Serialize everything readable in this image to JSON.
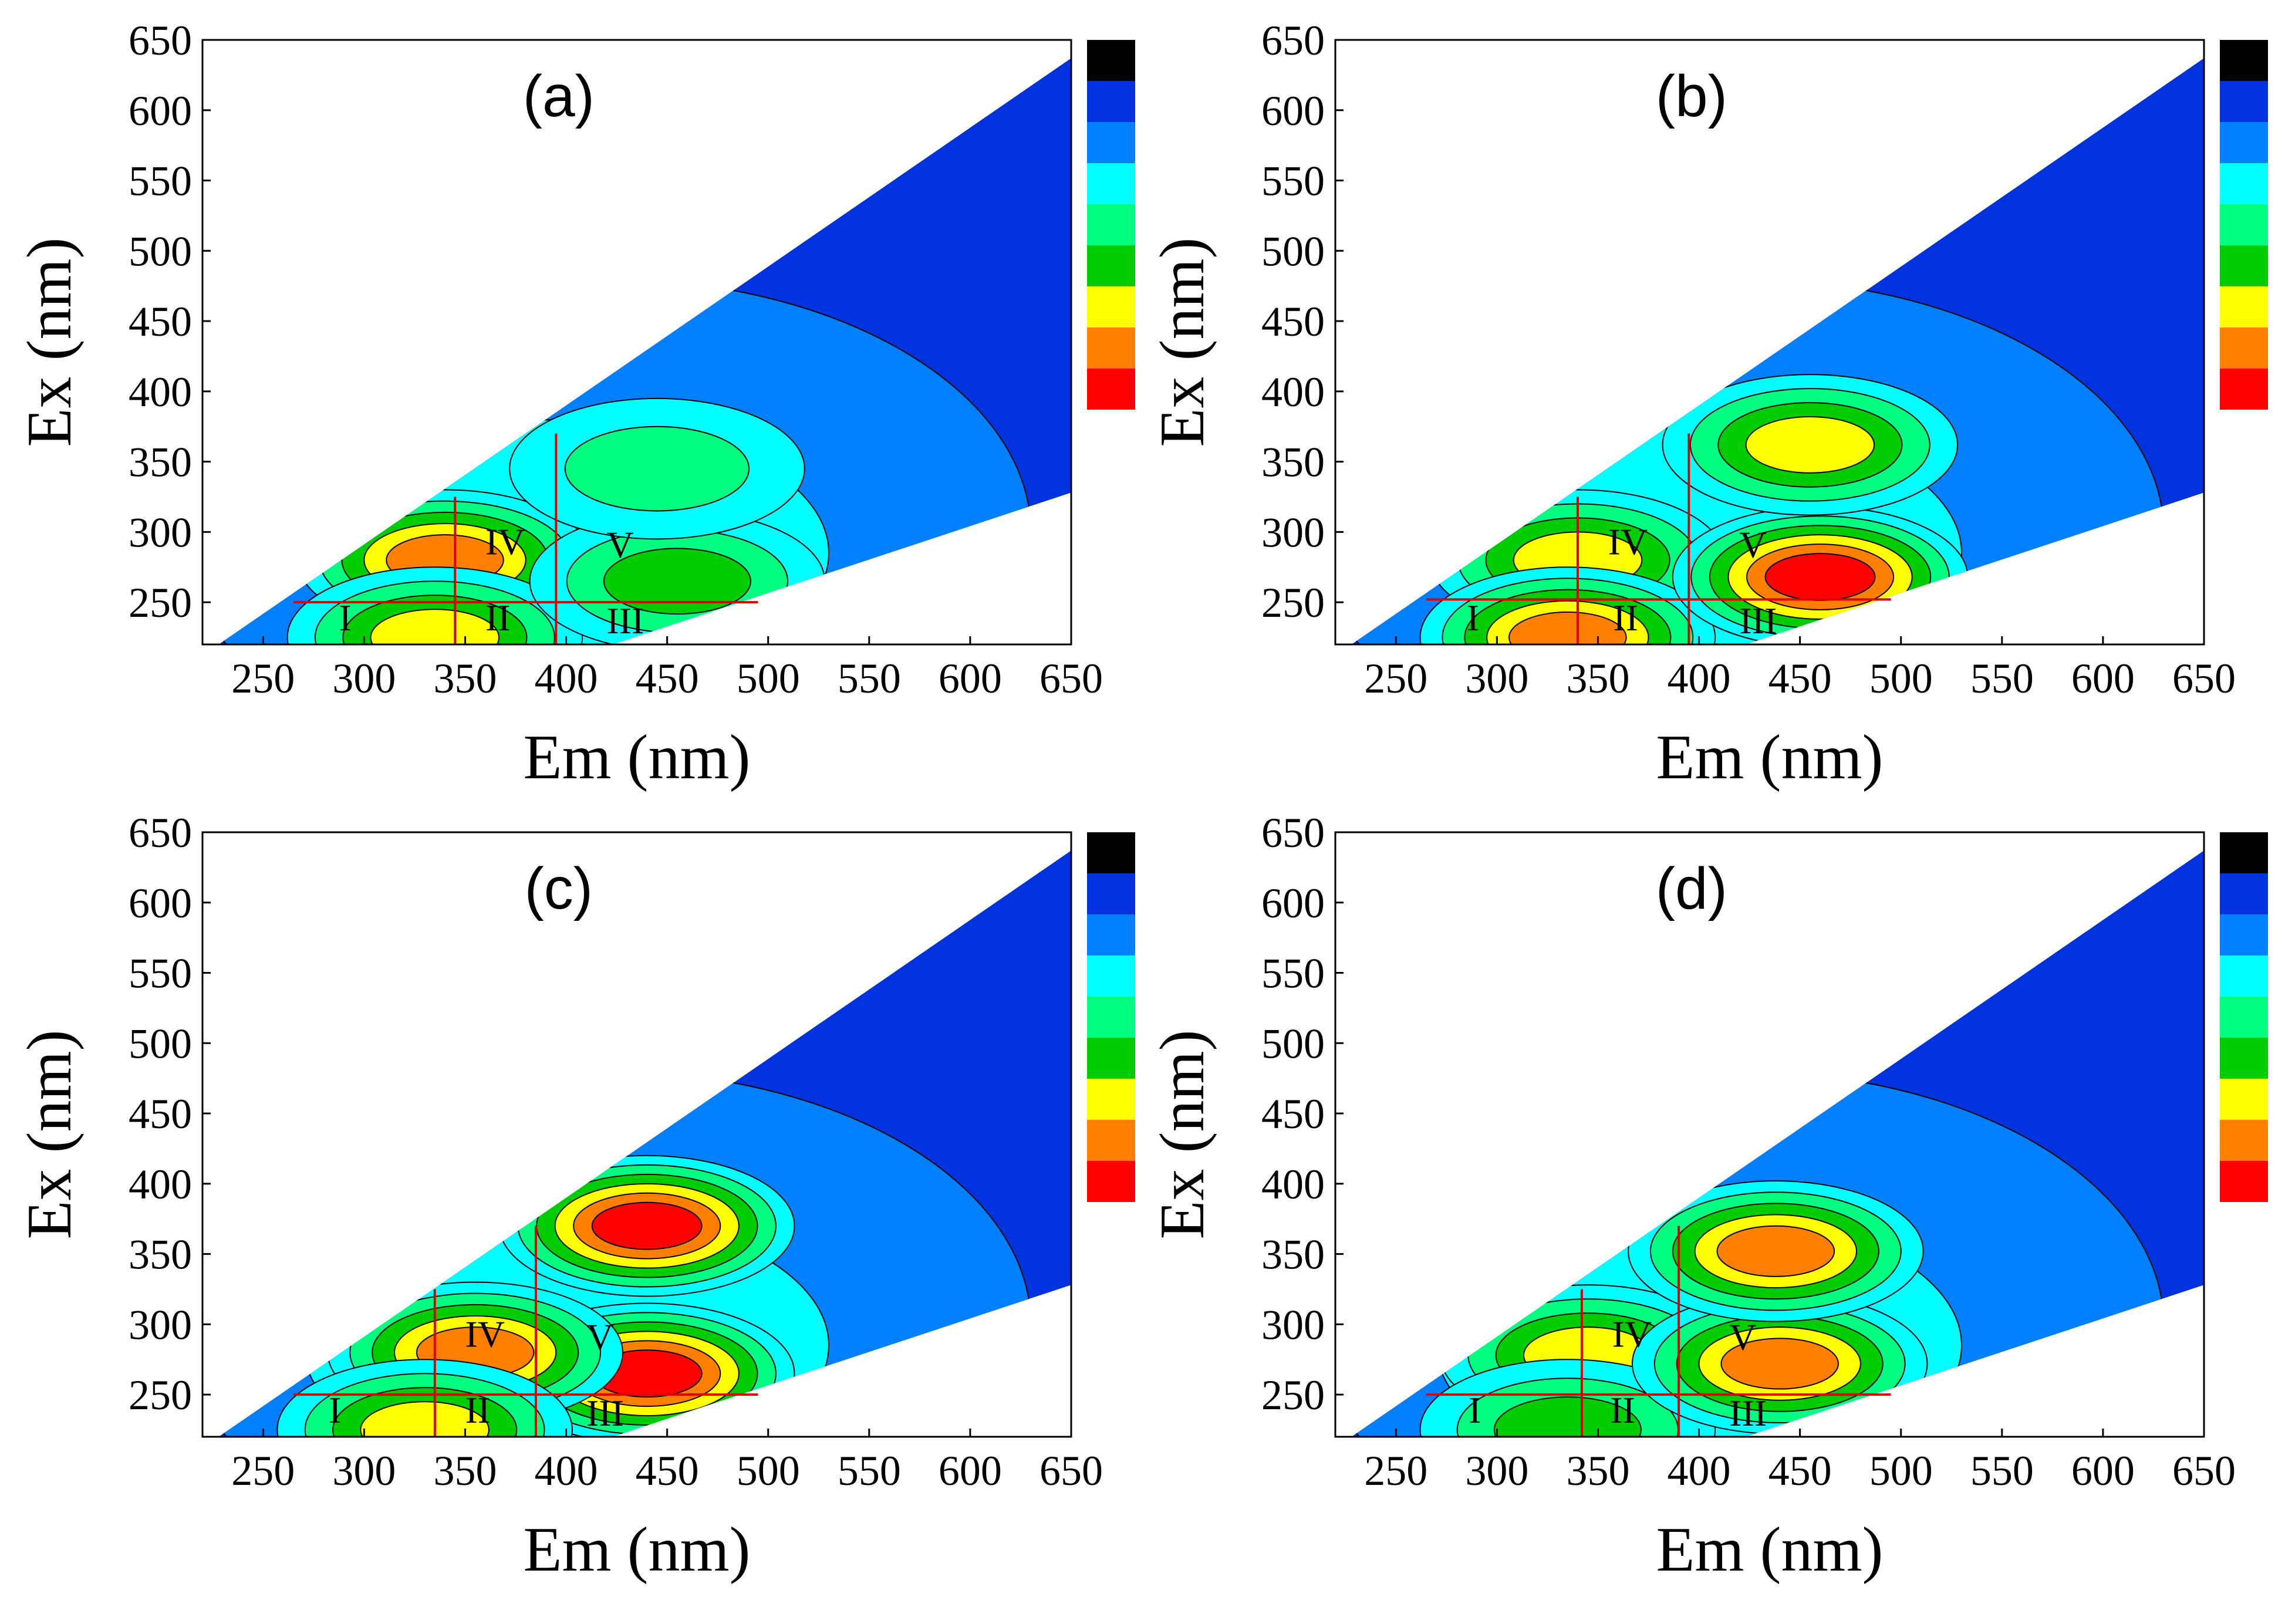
{
  "colorbar": [
    "#ff0000",
    "#ff7f00",
    "#ffff00",
    "#00cc00",
    "#00ff80",
    "#00ffff",
    "#0080ff",
    "#0033dd",
    "#000000"
  ],
  "chart_data": [
    {
      "type": "heatmap",
      "panel_label": "(a)",
      "xlabel": "Em (nm)",
      "ylabel": "Ex (nm)",
      "xlim": [
        220,
        650
      ],
      "ylim": [
        220,
        650
      ],
      "xticks": [
        "250",
        "300",
        "350",
        "400",
        "450",
        "500",
        "550",
        "600",
        "650"
      ],
      "yticks": [
        "250",
        "300",
        "350",
        "400",
        "450",
        "500",
        "550",
        "600",
        "650"
      ],
      "divider_em": [
        345,
        395
      ],
      "divider_ex": 250,
      "region_labels": [
        "I",
        "II",
        "III",
        "IV",
        "V"
      ],
      "peaks": [
        {
          "em": 340,
          "ex": 280,
          "level": 7
        },
        {
          "em": 335,
          "ex": 225,
          "level": 6
        },
        {
          "em": 455,
          "ex": 265,
          "level": 5
        },
        {
          "em": 445,
          "ex": 345,
          "level": 4
        }
      ]
    },
    {
      "type": "heatmap",
      "panel_label": "(b)",
      "xlabel": "Em (nm)",
      "ylabel": "Ex (nm)",
      "xlim": [
        220,
        650
      ],
      "ylim": [
        220,
        650
      ],
      "xticks": [
        "250",
        "300",
        "350",
        "400",
        "450",
        "500",
        "550",
        "600",
        "650"
      ],
      "yticks": [
        "250",
        "300",
        "350",
        "400",
        "450",
        "500",
        "550",
        "600",
        "650"
      ],
      "divider_em": [
        340,
        395
      ],
      "divider_ex": 252,
      "region_labels": [
        "I",
        "II",
        "III",
        "IV",
        "V"
      ],
      "peaks": [
        {
          "em": 340,
          "ex": 280,
          "level": 6
        },
        {
          "em": 335,
          "ex": 225,
          "level": 7
        },
        {
          "em": 460,
          "ex": 268,
          "level": 8
        },
        {
          "em": 455,
          "ex": 362,
          "level": 6
        }
      ]
    },
    {
      "type": "heatmap",
      "panel_label": "(c)",
      "xlabel": "Em (nm)",
      "ylabel": "Ex (nm)",
      "xlim": [
        220,
        650
      ],
      "ylim": [
        220,
        650
      ],
      "xticks": [
        "250",
        "300",
        "350",
        "400",
        "450",
        "500",
        "550",
        "600",
        "650"
      ],
      "yticks": [
        "250",
        "300",
        "350",
        "400",
        "450",
        "500",
        "550",
        "600",
        "650"
      ],
      "divider_em": [
        335,
        385
      ],
      "divider_ex": 250,
      "region_labels": [
        "I",
        "II",
        "III",
        "IV",
        "V"
      ],
      "peaks": [
        {
          "em": 440,
          "ex": 370,
          "level": 8
        },
        {
          "em": 440,
          "ex": 265,
          "level": 8
        },
        {
          "em": 355,
          "ex": 280,
          "level": 7
        },
        {
          "em": 330,
          "ex": 225,
          "level": 6
        }
      ]
    },
    {
      "type": "heatmap",
      "panel_label": "(d)",
      "xlabel": "Em (nm)",
      "ylabel": "Ex (nm)",
      "xlim": [
        220,
        650
      ],
      "ylim": [
        220,
        650
      ],
      "xticks": [
        "250",
        "300",
        "350",
        "400",
        "450",
        "500",
        "550",
        "600",
        "650"
      ],
      "yticks": [
        "250",
        "300",
        "350",
        "400",
        "450",
        "500",
        "550",
        "600",
        "650"
      ],
      "divider_em": [
        342,
        390
      ],
      "divider_ex": 250,
      "region_labels": [
        "I",
        "II",
        "III",
        "IV",
        "V"
      ],
      "peaks": [
        {
          "em": 345,
          "ex": 278,
          "level": 6
        },
        {
          "em": 335,
          "ex": 225,
          "level": 5
        },
        {
          "em": 440,
          "ex": 272,
          "level": 7
        },
        {
          "em": 438,
          "ex": 352,
          "level": 7
        }
      ]
    }
  ]
}
